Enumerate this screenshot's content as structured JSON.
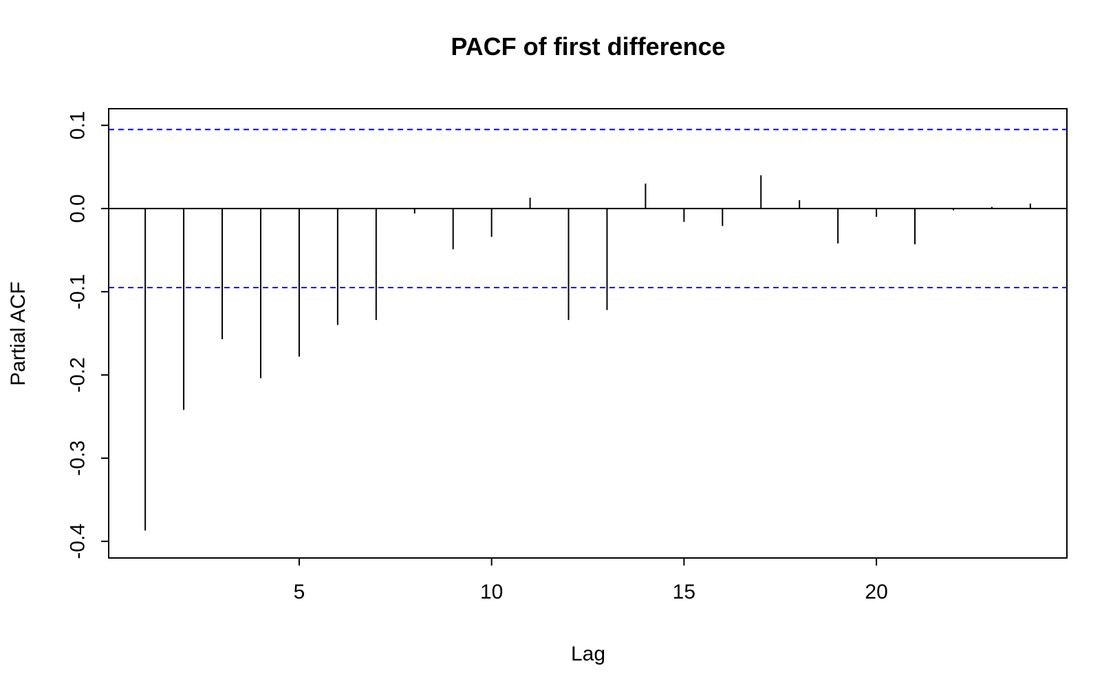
{
  "chart_data": {
    "type": "bar",
    "title": "PACF of first difference",
    "xlabel": "Lag",
    "ylabel": "Partial ACF",
    "xlim": [
      0.05,
      24.95
    ],
    "ylim": [
      -0.4,
      0.1
    ],
    "x_ticks": [
      5,
      10,
      15,
      20
    ],
    "x_tick_labels": [
      "5",
      "10",
      "15",
      "20"
    ],
    "y_ticks": [
      -0.4,
      -0.3,
      -0.2,
      -0.1,
      0.0,
      0.1
    ],
    "y_tick_labels": [
      "-0.4",
      "-0.3",
      "-0.2",
      "-0.1",
      "0.0",
      "0.1"
    ],
    "confidence_bound": 0.095,
    "grid": false,
    "colors": {
      "spike": "#000000",
      "confidence_line": "#0000ff",
      "axis": "#000000"
    },
    "series": [
      {
        "lags": [
          1,
          2,
          3,
          4,
          5,
          6,
          7,
          8,
          9,
          10,
          11,
          12,
          13,
          14,
          15,
          16,
          17,
          18,
          19,
          20,
          21,
          22,
          23,
          24
        ],
        "values": [
          -0.387,
          -0.242,
          -0.157,
          -0.204,
          -0.178,
          -0.14,
          -0.134,
          -0.006,
          -0.049,
          -0.034,
          0.013,
          -0.134,
          -0.122,
          0.03,
          -0.016,
          -0.021,
          0.04,
          0.01,
          -0.042,
          -0.01,
          -0.043,
          -0.002,
          0.002,
          0.006
        ]
      }
    ]
  }
}
